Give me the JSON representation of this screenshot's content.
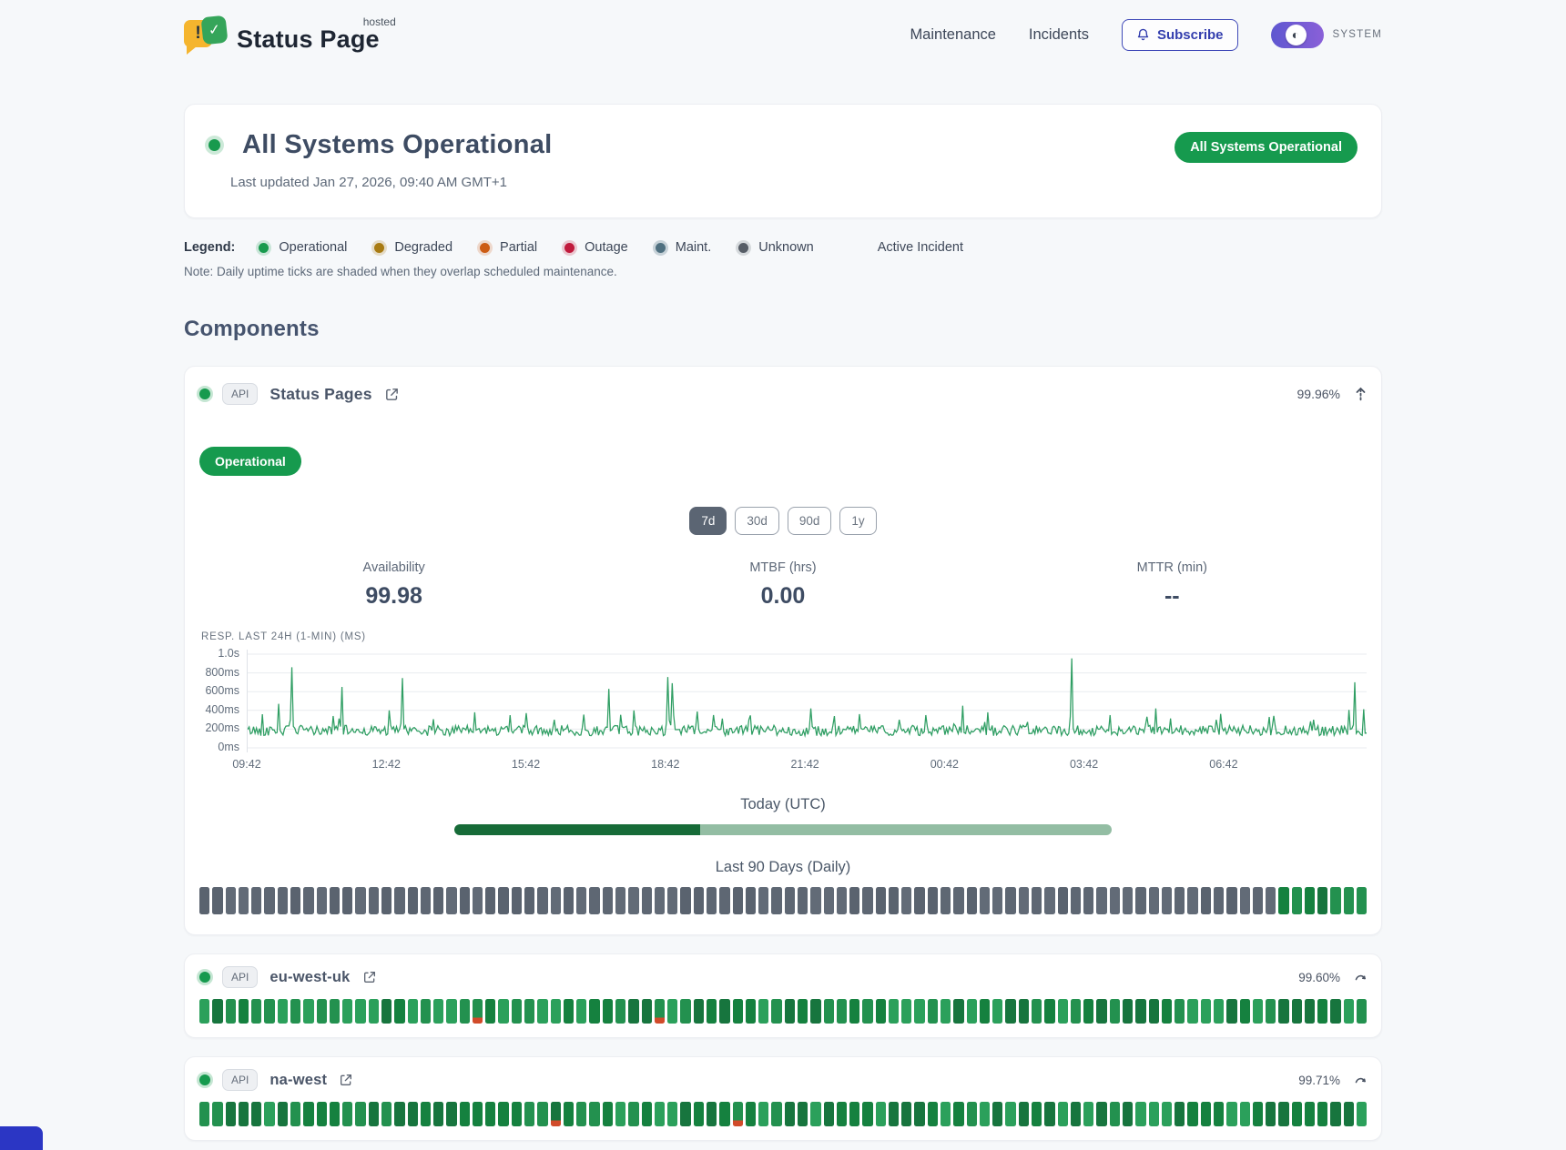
{
  "header": {
    "logo_text": "Status Page",
    "logo_sup": "hosted",
    "logo_mark": {
      "left_glyph": "!",
      "right_glyph": "check-icon"
    },
    "nav": [
      {
        "label": "Maintenance"
      },
      {
        "label": "Incidents"
      }
    ],
    "subscribe_label": "Subscribe",
    "subscribe_icon": "bell-icon",
    "theme_toggle_icon": "contrast-half-circle-icon",
    "theme_label": "SYSTEM"
  },
  "hero": {
    "title": "All Systems Operational",
    "updated": "Last updated Jan 27, 2026, 09:40 AM GMT+1",
    "badge": "All Systems Operational",
    "status_color": "#189a4e"
  },
  "legend": {
    "label": "Legend:",
    "items": [
      {
        "label": "Operational",
        "color": "#189a4e",
        "ring": "rgba(24,154,78,0.2)"
      },
      {
        "label": "Degraded",
        "color": "#a87b12",
        "ring": "rgba(168,123,18,0.22)"
      },
      {
        "label": "Partial",
        "color": "#cc5c14",
        "ring": "rgba(204,92,20,0.2)"
      },
      {
        "label": "Outage",
        "color": "#c01a3c",
        "ring": "rgba(192,26,60,0.22)"
      },
      {
        "label": "Maint.",
        "color": "#4f7080",
        "ring": "rgba(79,112,128,0.28)"
      },
      {
        "label": "Unknown",
        "color": "#565d66",
        "ring": "rgba(86,93,102,0.2)"
      }
    ],
    "active_incident_label": "Active Incident",
    "note": "Note: Daily uptime ticks are shaded when they overlap scheduled maintenance."
  },
  "components": {
    "heading": "Components",
    "primary": {
      "badge": "API",
      "name": "Status Pages",
      "uptime": "99.96%",
      "status_label": "Operational",
      "ranges": [
        "7d",
        "30d",
        "90d",
        "1y"
      ],
      "active_range": "7d",
      "metrics": [
        {
          "label": "Availability",
          "value": "99.98"
        },
        {
          "label": "MTBF (hrs)",
          "value": "0.00"
        },
        {
          "label": "MTTR (min)",
          "value": "--"
        }
      ],
      "today_label": "Today (UTC)",
      "today_progress": 0.374,
      "today_colors": {
        "elapsed": "#176b38",
        "remaining": "#93bda3"
      },
      "history_label": "Last 90 Days (Daily)",
      "history": {
        "gray_days": 83,
        "green_days": 7
      }
    },
    "regions": [
      {
        "badge": "API",
        "name": "eu-west-uk",
        "uptime": "99.60%",
        "days": 90,
        "blips": [
          21,
          35
        ]
      },
      {
        "badge": "API",
        "name": "na-west",
        "uptime": "99.71%",
        "days": 90,
        "blips": [
          27,
          41
        ]
      }
    ],
    "tick_colors": {
      "greens": [
        "#2ba05b",
        "#17753e",
        "#23914f",
        "#15813f"
      ],
      "grays": [
        "#5a636f",
        "#5e6773",
        "#626b77"
      ],
      "blip_red": "#d14b2a"
    }
  },
  "chart_data": {
    "type": "line",
    "title": "RESP. LAST 24H (1-MIN) (MS)",
    "ylabel_ticks": [
      "1.0s",
      "800ms",
      "600ms",
      "400ms",
      "200ms",
      "0ms"
    ],
    "ylim": [
      0,
      1000
    ],
    "x_ticks": [
      "09:42",
      "12:42",
      "15:42",
      "18:42",
      "21:42",
      "00:42",
      "03:42",
      "06:42"
    ],
    "grid": true,
    "line_color": "#2f9e63",
    "baseline_ms": {
      "min": 130,
      "max": 240,
      "minor_spike_rate": 0.06,
      "minor_spike_max": 230
    },
    "spikes": [
      [
        0.028,
        470
      ],
      [
        0.039,
        860
      ],
      [
        0.084,
        650
      ],
      [
        0.127,
        400
      ],
      [
        0.138,
        745
      ],
      [
        0.203,
        380
      ],
      [
        0.235,
        350
      ],
      [
        0.274,
        300
      ],
      [
        0.323,
        630
      ],
      [
        0.345,
        400
      ],
      [
        0.375,
        755
      ],
      [
        0.38,
        690
      ],
      [
        0.416,
        350
      ],
      [
        0.448,
        300
      ],
      [
        0.503,
        420
      ],
      [
        0.547,
        360
      ],
      [
        0.582,
        300
      ],
      [
        0.606,
        350
      ],
      [
        0.639,
        450
      ],
      [
        0.661,
        380
      ],
      [
        0.737,
        955
      ],
      [
        0.771,
        350
      ],
      [
        0.811,
        420
      ],
      [
        0.866,
        300
      ],
      [
        0.913,
        330
      ],
      [
        0.953,
        300
      ],
      [
        0.989,
        700
      ]
    ]
  }
}
